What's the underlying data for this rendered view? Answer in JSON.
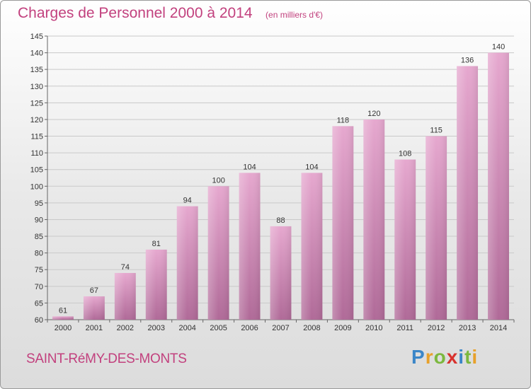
{
  "header": {
    "title": "Charges de Personnel 2000 à 2014",
    "subtitle": "(en milliers d'€)"
  },
  "footer": {
    "commune": "SAINT-RéMY-DES-MONTS",
    "logo_letters": [
      {
        "char": "P",
        "color": "#3b86c8"
      },
      {
        "char": "r",
        "color": "#e8a12a"
      },
      {
        "char": "o",
        "color": "#7cb83f"
      },
      {
        "char": "x",
        "color": "#d8322e"
      },
      {
        "char": "i",
        "color": "#3b86c8"
      },
      {
        "char": "t",
        "color": "#7cb83f"
      },
      {
        "char": "i",
        "color": "#e8a12a"
      }
    ]
  },
  "chart_data": {
    "type": "bar",
    "categories": [
      "2000",
      "2001",
      "2002",
      "2003",
      "2004",
      "2005",
      "2006",
      "2007",
      "2008",
      "2009",
      "2010",
      "2011",
      "2012",
      "2013",
      "2014"
    ],
    "values": [
      61,
      67,
      74,
      81,
      94,
      100,
      104,
      88,
      104,
      118,
      120,
      108,
      115,
      136,
      140
    ],
    "ylim": [
      60,
      145
    ],
    "yticks": [
      60,
      65,
      70,
      75,
      80,
      85,
      90,
      95,
      100,
      105,
      110,
      115,
      120,
      125,
      130,
      135,
      140,
      145
    ],
    "grid": true,
    "bar_color_top": "#e6a8cf",
    "bar_color_bottom": "#b06a98"
  }
}
